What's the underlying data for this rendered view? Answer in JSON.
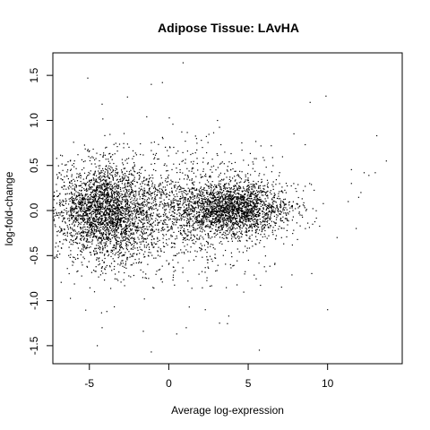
{
  "chart_data": {
    "type": "scatter",
    "title": "Adipose Tissue: LAvHA",
    "xlabel": "Average log-expression",
    "ylabel": "log-fold-change",
    "xlim": [
      -7.3,
      14.7
    ],
    "ylim": [
      -1.7,
      1.75
    ],
    "x_ticks": [
      -5,
      0,
      5,
      10
    ],
    "y_ticks": [
      -1.5,
      -1.0,
      -0.5,
      0.0,
      0.5,
      1.0,
      1.5
    ],
    "x_tick_labels": [
      "-5",
      "0",
      "5",
      "10"
    ],
    "y_tick_labels": [
      "-1.5",
      "-1.0",
      "-0.5",
      "0.0",
      "0.5",
      "1.0",
      "1.5"
    ],
    "grid": false,
    "point_color": "#000000",
    "clusters": [
      {
        "x_mean": -4.0,
        "x_sd": 1.6,
        "y_mean": -0.02,
        "y_sd": 0.26,
        "count": 2600
      },
      {
        "x_mean": 4.0,
        "x_sd": 1.8,
        "y_mean": 0.02,
        "y_sd": 0.15,
        "count": 2100
      },
      {
        "x_mean": 0.5,
        "x_sd": 3.2,
        "y_mean": 0.0,
        "y_sd": 0.38,
        "count": 1300
      }
    ],
    "points": [
      [
        0.9,
        1.64
      ],
      [
        -0.4,
        1.42
      ],
      [
        -5.1,
        1.47
      ],
      [
        -1.1,
        1.4
      ],
      [
        -2.6,
        1.26
      ],
      [
        9.9,
        1.27
      ],
      [
        -4.2,
        1.18
      ],
      [
        8.9,
        1.2
      ],
      [
        13.1,
        0.83
      ],
      [
        12.6,
        0.39
      ],
      [
        13.0,
        0.42
      ],
      [
        13.7,
        0.55
      ],
      [
        12.3,
        0.42
      ],
      [
        11.3,
        0.1
      ],
      [
        10.6,
        -0.3
      ],
      [
        11.8,
        -0.2
      ],
      [
        9.0,
        -0.7
      ],
      [
        -1.1,
        -1.57
      ],
      [
        5.7,
        -1.55
      ],
      [
        3.2,
        -1.25
      ],
      [
        -4.5,
        -1.5
      ],
      [
        -4.2,
        -1.3
      ],
      [
        -1.6,
        -1.34
      ],
      [
        1.1,
        -1.3
      ],
      [
        -3.9,
        -1.12
      ],
      [
        -6.3,
        -0.5
      ],
      [
        -6.8,
        -0.2
      ],
      [
        -6.5,
        0.18
      ],
      [
        -6.2,
        0.55
      ],
      [
        0.5,
        -1.37
      ],
      [
        7.1,
        -0.85
      ],
      [
        10.0,
        -1.1
      ],
      [
        2.3,
        -1.1
      ],
      [
        12.1,
        0.2
      ],
      [
        11.5,
        0.3
      ]
    ]
  }
}
